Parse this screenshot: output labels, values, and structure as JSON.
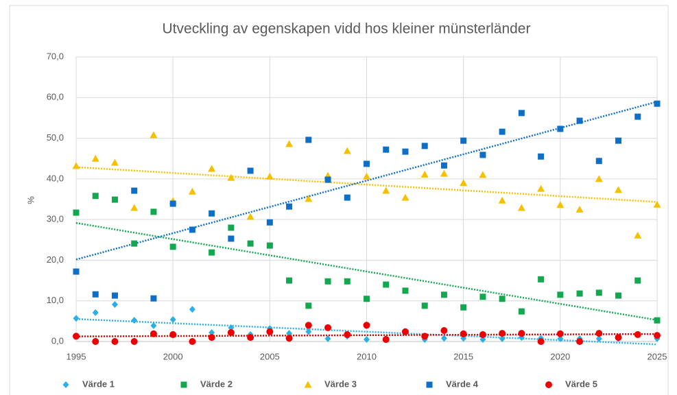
{
  "chart_data": {
    "type": "scatter",
    "title": "Utveckling av egenskapen vidd hos kleiner münsterländer",
    "y_label": "%",
    "x": [
      1995,
      1996,
      1997,
      1998,
      1999,
      2000,
      2001,
      2002,
      2003,
      2004,
      2005,
      2006,
      2007,
      2008,
      2009,
      2010,
      2011,
      2012,
      2013,
      2014,
      2015,
      2016,
      2017,
      2018,
      2019,
      2020,
      2021,
      2022,
      2023,
      2024,
      2025
    ],
    "xlim": [
      1995,
      2025
    ],
    "xticks": [
      1995,
      2000,
      2005,
      2010,
      2015,
      2020,
      2025
    ],
    "ylim": [
      0,
      70
    ],
    "yticks": [
      {
        "value": 0,
        "label": "0,0"
      },
      {
        "value": 10,
        "label": "10,0"
      },
      {
        "value": 20,
        "label": "20,0"
      },
      {
        "value": 30,
        "label": "30,0"
      },
      {
        "value": 40,
        "label": "40,0"
      },
      {
        "value": 50,
        "label": "50,0"
      },
      {
        "value": 60,
        "label": "60,0"
      },
      {
        "value": 70,
        "label": "70,0"
      }
    ],
    "grid": true,
    "trendline": true,
    "legend": "bottom",
    "series": [
      {
        "name": "Värde 1",
        "color": "#2dafe6",
        "marker": "diamond",
        "values": [
          5.7,
          7.1,
          9.1,
          5.2,
          3.9,
          5.4,
          7.9,
          2.2,
          3.4,
          1.7,
          3.2,
          2.0,
          2.4,
          0.7,
          1.3,
          0.5,
          0.7,
          2.2,
          0.5,
          0.8,
          0.8,
          0.5,
          0.7,
          1.0,
          0.8,
          0.7,
          0.7,
          0.7,
          0.7,
          1.7,
          0.7
        ]
      },
      {
        "name": "Värde 2",
        "color": "#13a850",
        "marker": "square",
        "values": [
          31.7,
          35.8,
          34.9,
          24.1,
          31.9,
          23.3,
          null,
          21.9,
          28.0,
          24.1,
          23.6,
          15.0,
          8.8,
          14.8,
          14.8,
          10.5,
          14.0,
          12.5,
          8.8,
          11.5,
          8.4,
          11.0,
          10.5,
          7.4,
          15.3,
          11.5,
          11.8,
          12.0,
          11.3,
          15.0,
          5.2
        ]
      },
      {
        "name": "Värde 3",
        "color": "#f5c000",
        "marker": "triangle",
        "values": [
          43.2,
          45.0,
          44.0,
          32.9,
          50.8,
          34.6,
          36.9,
          42.5,
          40.3,
          30.7,
          40.6,
          48.6,
          35.1,
          40.8,
          46.9,
          40.6,
          37.1,
          35.4,
          41.1,
          41.3,
          39.0,
          41.0,
          34.7,
          32.9,
          37.6,
          33.6,
          32.5,
          40.0,
          37.3,
          26.1,
          33.7
        ]
      },
      {
        "name": "Värde 4",
        "color": "#0f6fc6",
        "marker": "square",
        "values": [
          17.2,
          11.6,
          11.3,
          37.1,
          10.6,
          33.9,
          27.5,
          31.5,
          25.3,
          42.0,
          29.3,
          33.2,
          49.6,
          39.8,
          35.4,
          43.7,
          47.2,
          46.7,
          48.1,
          43.3,
          49.4,
          45.9,
          51.6,
          56.2,
          45.5,
          52.3,
          54.3,
          44.4,
          49.4,
          55.3,
          58.5
        ]
      },
      {
        "name": "Värde 5",
        "color": "#ee0000",
        "marker": "circle",
        "values": [
          1.3,
          0,
          0,
          0,
          1.9,
          1.7,
          0,
          1.0,
          2.2,
          1.0,
          2.4,
          0.8,
          4.0,
          3.4,
          1.7,
          4.0,
          0.5,
          2.4,
          1.3,
          2.7,
          1.9,
          1.7,
          2.0,
          2.0,
          0,
          1.9,
          0,
          2.0,
          1.0,
          1.7,
          1.5
        ]
      }
    ]
  }
}
